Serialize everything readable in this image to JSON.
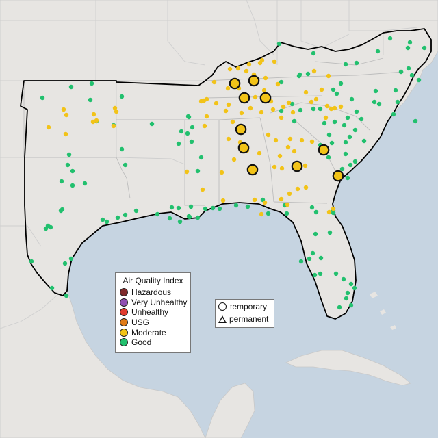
{
  "legend": {
    "title": "Air Quality Index",
    "items": [
      {
        "label": "Hazardous",
        "color": "#7e2a2a"
      },
      {
        "label": "Very Unhealthy",
        "color": "#8f4fb3"
      },
      {
        "label": "Unhealthy",
        "color": "#e03a2e"
      },
      {
        "label": "USG",
        "color": "#e07b18"
      },
      {
        "label": "Moderate",
        "color": "#f2c318"
      },
      {
        "label": "Good",
        "color": "#22c06e"
      }
    ]
  },
  "monitor_legend": {
    "temporary": "temporary",
    "permanent": "permanent"
  },
  "colors": {
    "water": "#c6d4e1",
    "land": "#e7e5e2",
    "border": "#cfcfcf",
    "region_outline": "#000000",
    "good": "#22c06e",
    "moderate": "#f2c318"
  }
}
